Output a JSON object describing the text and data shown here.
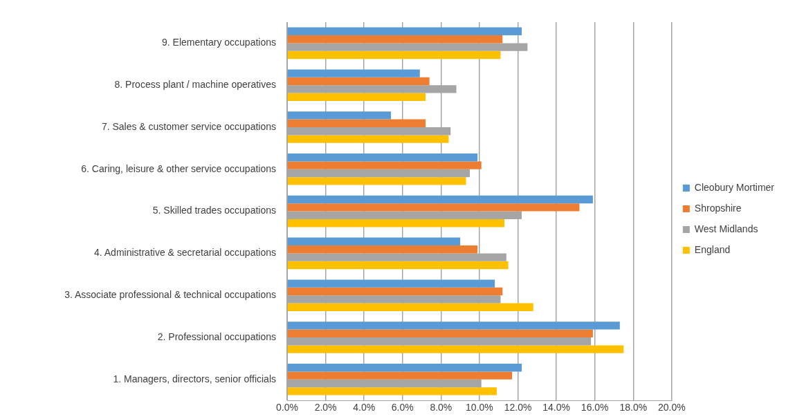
{
  "chart_data": {
    "type": "bar",
    "orientation": "horizontal",
    "categories": [
      "9. Elementary occupations",
      "8. Process plant / machine operatives",
      "7. Sales & customer service occupations",
      "6. Caring, leisure & other service occupations",
      "5. Skilled trades occupations",
      "4. Administrative & secretarial occupations",
      "3. Associate professional & technical occupations",
      "2. Professional occupations",
      "1. Managers, directors, senior officials"
    ],
    "series": [
      {
        "name": "Cleobury Mortimer",
        "color": "#5b9bd5",
        "values": [
          12.2,
          6.9,
          5.4,
          9.9,
          15.9,
          9.0,
          10.8,
          17.3,
          12.2
        ]
      },
      {
        "name": "Shropshire",
        "color": "#ed7d31",
        "values": [
          11.2,
          7.4,
          7.2,
          10.1,
          15.2,
          9.9,
          11.2,
          15.9,
          11.7
        ]
      },
      {
        "name": "West Midlands",
        "color": "#a5a5a5",
        "values": [
          12.5,
          8.8,
          8.5,
          9.5,
          12.2,
          11.4,
          11.1,
          15.8,
          10.1
        ]
      },
      {
        "name": "England",
        "color": "#ffc000",
        "values": [
          11.1,
          7.2,
          8.4,
          9.3,
          11.3,
          11.5,
          12.8,
          17.5,
          10.9
        ]
      }
    ],
    "xlim": [
      0,
      20
    ],
    "xticks": [
      {
        "value": 0,
        "label": "0.0%"
      },
      {
        "value": 2,
        "label": "2.0%"
      },
      {
        "value": 4,
        "label": "4.0%"
      },
      {
        "value": 6,
        "label": "6.0%"
      },
      {
        "value": 8,
        "label": "8.0%"
      },
      {
        "value": 10,
        "label": "10.0%"
      },
      {
        "value": 12,
        "label": "12.0%"
      },
      {
        "value": 14,
        "label": "14.0%"
      },
      {
        "value": 16,
        "label": "16.0%"
      },
      {
        "value": 18,
        "label": "18.0%"
      },
      {
        "value": 20,
        "label": "20.0%"
      }
    ],
    "grid": "x",
    "legend": "right"
  }
}
